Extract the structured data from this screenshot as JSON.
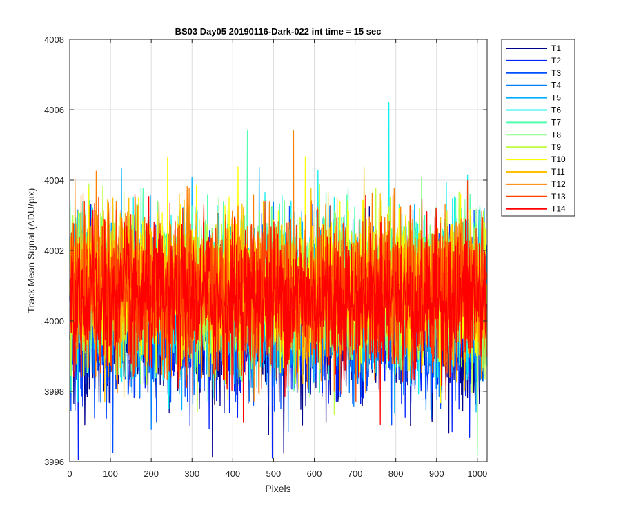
{
  "chart_data": {
    "type": "line",
    "title": "BS03 Day05 20190116-Dark-022 int time = 15 sec",
    "xlabel": "Pixels",
    "ylabel": "Track Mean Signal (ADU/pix)",
    "xlim": [
      0,
      1024
    ],
    "ylim": [
      3996,
      4008
    ],
    "xticks": [
      0,
      100,
      200,
      300,
      400,
      500,
      600,
      700,
      800,
      900,
      1000
    ],
    "yticks": [
      3996,
      3998,
      4000,
      4002,
      4004,
      4006,
      4008
    ],
    "grid": true,
    "legend_position": "outside top-right",
    "x_count": 1024,
    "series": [
      {
        "name": "T1",
        "color": "#00008F",
        "mean": 3999.8
      },
      {
        "name": "T2",
        "color": "#0020FF",
        "mean": 4000.0
      },
      {
        "name": "T3",
        "color": "#0050FF",
        "mean": 4000.2
      },
      {
        "name": "T4",
        "color": "#0080FF",
        "mean": 4000.4
      },
      {
        "name": "T5",
        "color": "#00B0FF",
        "mean": 4000.6
      },
      {
        "name": "T6",
        "color": "#10F0EF",
        "mean": 4000.8
      },
      {
        "name": "T7",
        "color": "#50FFAF",
        "mean": 4000.9
      },
      {
        "name": "T8",
        "color": "#80FF80",
        "mean": 4000.9
      },
      {
        "name": "T9",
        "color": "#BFFF40",
        "mean": 4000.9
      },
      {
        "name": "T10",
        "color": "#FFFF00",
        "mean": 4000.9
      },
      {
        "name": "T11",
        "color": "#FFC000",
        "mean": 4000.9
      },
      {
        "name": "T12",
        "color": "#FF8000",
        "mean": 4000.9
      },
      {
        "name": "T13",
        "color": "#FF4000",
        "mean": 4000.8
      },
      {
        "name": "T14",
        "color": "#FF0000",
        "mean": 4000.6
      }
    ],
    "annotations": [
      {
        "series": "T6",
        "x": 783,
        "y": 4006.2
      },
      {
        "series": "T2",
        "x": 497,
        "y": 3996.1
      },
      {
        "series": "T8",
        "x": 1000,
        "y": 3996.2
      }
    ]
  }
}
